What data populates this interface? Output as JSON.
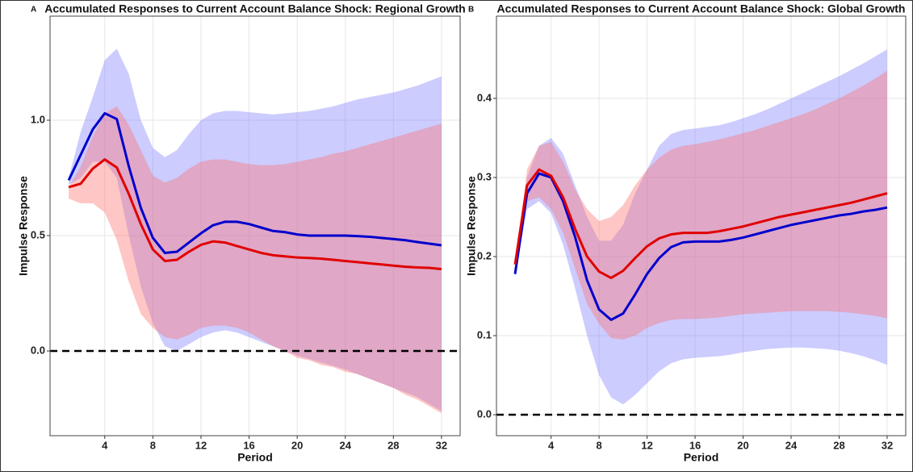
{
  "chart_data": [
    {
      "type": "band-line",
      "panel_label": "A",
      "title": "Accumulated Responses to Current Account Balance Shock: Regional Growth",
      "x_label": "Period",
      "y_label": "Impulse Response",
      "x": [
        1,
        2,
        3,
        4,
        5,
        6,
        7,
        8,
        9,
        10,
        11,
        12,
        13,
        14,
        15,
        16,
        17,
        18,
        19,
        20,
        21,
        22,
        23,
        24,
        25,
        26,
        27,
        28,
        29,
        30,
        31,
        32
      ],
      "xlim": [
        -0.55,
        33.55
      ],
      "xticks": [
        4,
        8,
        12,
        16,
        20,
        24,
        28,
        32
      ],
      "ylim": [
        -0.367,
        1.451
      ],
      "yticks": [
        {
          "value": 0,
          "label": "0.0"
        },
        {
          "value": 0.5,
          "label": "0.5"
        },
        {
          "value": 1,
          "label": "1.0"
        }
      ],
      "hline": 0,
      "grid": true,
      "series": [
        {
          "color": "#0000cc",
          "band_color": "#8080ff",
          "values": [
            0.74,
            0.85,
            0.96,
            1.03,
            1.005,
            0.8,
            0.62,
            0.49,
            0.425,
            0.43,
            0.47,
            0.51,
            0.545,
            0.56,
            0.56,
            0.55,
            0.535,
            0.52,
            0.515,
            0.505,
            0.5,
            0.5,
            0.5,
            0.5,
            0.498,
            0.495,
            0.49,
            0.485,
            0.48,
            0.472,
            0.465,
            0.458
          ],
          "upper": [
            0.75,
            0.95,
            1.1,
            1.26,
            1.31,
            1.2,
            1.0,
            0.88,
            0.84,
            0.87,
            0.94,
            1.0,
            1.03,
            1.04,
            1.04,
            1.035,
            1.03,
            1.025,
            1.03,
            1.035,
            1.04,
            1.05,
            1.06,
            1.075,
            1.09,
            1.1,
            1.11,
            1.12,
            1.135,
            1.15,
            1.17,
            1.19
          ],
          "lower": [
            0.72,
            0.75,
            0.82,
            0.82,
            0.75,
            0.5,
            0.28,
            0.12,
            0.02,
            0.0,
            0.03,
            0.06,
            0.08,
            0.09,
            0.08,
            0.06,
            0.04,
            0.02,
            0.0,
            -0.02,
            -0.035,
            -0.05,
            -0.065,
            -0.08,
            -0.1,
            -0.12,
            -0.14,
            -0.16,
            -0.18,
            -0.2,
            -0.23,
            -0.26
          ]
        },
        {
          "color": "#e00000",
          "band_color": "#ff7070",
          "values": [
            0.71,
            0.725,
            0.79,
            0.83,
            0.795,
            0.68,
            0.55,
            0.44,
            0.39,
            0.395,
            0.43,
            0.46,
            0.475,
            0.47,
            0.455,
            0.44,
            0.425,
            0.415,
            0.41,
            0.405,
            0.403,
            0.4,
            0.395,
            0.39,
            0.385,
            0.38,
            0.375,
            0.37,
            0.365,
            0.362,
            0.36,
            0.355
          ],
          "upper": [
            0.71,
            0.8,
            0.93,
            1.03,
            1.06,
            0.98,
            0.87,
            0.76,
            0.73,
            0.75,
            0.79,
            0.82,
            0.83,
            0.83,
            0.82,
            0.81,
            0.805,
            0.805,
            0.81,
            0.82,
            0.83,
            0.84,
            0.855,
            0.865,
            0.88,
            0.895,
            0.91,
            0.925,
            0.94,
            0.955,
            0.97,
            0.985
          ],
          "lower": [
            0.66,
            0.64,
            0.64,
            0.6,
            0.48,
            0.3,
            0.16,
            0.1,
            0.06,
            0.05,
            0.07,
            0.1,
            0.11,
            0.11,
            0.1,
            0.08,
            0.05,
            0.02,
            0.0,
            -0.03,
            -0.04,
            -0.06,
            -0.07,
            -0.09,
            -0.1,
            -0.12,
            -0.14,
            -0.16,
            -0.19,
            -0.21,
            -0.24,
            -0.27
          ]
        }
      ]
    },
    {
      "type": "band-line",
      "panel_label": "B",
      "title": "Accumulated Responses to Current Account Balance Shock: Global Growth",
      "x_label": "Period",
      "y_label": "Impulse Response",
      "x": [
        1,
        2,
        3,
        4,
        5,
        6,
        7,
        8,
        9,
        10,
        11,
        12,
        13,
        14,
        15,
        16,
        17,
        18,
        19,
        20,
        21,
        22,
        23,
        24,
        25,
        26,
        27,
        28,
        29,
        30,
        31,
        32
      ],
      "xlim": [
        -0.55,
        33.55
      ],
      "xticks": [
        4,
        8,
        12,
        16,
        20,
        24,
        28,
        32
      ],
      "ylim": [
        -0.0265,
        0.504
      ],
      "yticks": [
        {
          "value": 0,
          "label": "0.0"
        },
        0.1,
        0.2,
        0.3,
        0.4
      ],
      "hline": 0,
      "grid": true,
      "series": [
        {
          "color": "#0000cc",
          "band_color": "#8080ff",
          "values": [
            0.178,
            0.28,
            0.305,
            0.3,
            0.27,
            0.225,
            0.17,
            0.133,
            0.12,
            0.128,
            0.152,
            0.178,
            0.198,
            0.212,
            0.218,
            0.219,
            0.219,
            0.219,
            0.221,
            0.224,
            0.228,
            0.232,
            0.236,
            0.24,
            0.243,
            0.246,
            0.249,
            0.252,
            0.254,
            0.257,
            0.259,
            0.262
          ],
          "upper": [
            0.18,
            0.3,
            0.34,
            0.35,
            0.33,
            0.29,
            0.25,
            0.22,
            0.22,
            0.24,
            0.28,
            0.31,
            0.34,
            0.355,
            0.36,
            0.362,
            0.364,
            0.366,
            0.37,
            0.375,
            0.38,
            0.386,
            0.393,
            0.4,
            0.407,
            0.414,
            0.421,
            0.428,
            0.436,
            0.444,
            0.453,
            0.462
          ],
          "lower": [
            0.175,
            0.26,
            0.27,
            0.255,
            0.215,
            0.16,
            0.1,
            0.05,
            0.022,
            0.013,
            0.025,
            0.04,
            0.055,
            0.065,
            0.07,
            0.072,
            0.073,
            0.074,
            0.076,
            0.079,
            0.081,
            0.083,
            0.084,
            0.085,
            0.085,
            0.084,
            0.083,
            0.081,
            0.078,
            0.074,
            0.069,
            0.063
          ]
        },
        {
          "color": "#e00000",
          "band_color": "#ff7070",
          "values": [
            0.19,
            0.29,
            0.31,
            0.302,
            0.275,
            0.235,
            0.2,
            0.181,
            0.173,
            0.182,
            0.198,
            0.213,
            0.223,
            0.228,
            0.23,
            0.23,
            0.23,
            0.232,
            0.235,
            0.238,
            0.242,
            0.246,
            0.25,
            0.253,
            0.256,
            0.259,
            0.262,
            0.265,
            0.268,
            0.272,
            0.276,
            0.28
          ],
          "upper": [
            0.19,
            0.31,
            0.34,
            0.345,
            0.32,
            0.285,
            0.26,
            0.245,
            0.25,
            0.265,
            0.29,
            0.31,
            0.325,
            0.335,
            0.34,
            0.342,
            0.345,
            0.348,
            0.352,
            0.356,
            0.36,
            0.365,
            0.37,
            0.375,
            0.38,
            0.386,
            0.393,
            0.4,
            0.408,
            0.416,
            0.425,
            0.435
          ],
          "lower": [
            0.185,
            0.27,
            0.275,
            0.26,
            0.23,
            0.185,
            0.14,
            0.115,
            0.097,
            0.095,
            0.1,
            0.11,
            0.116,
            0.12,
            0.121,
            0.121,
            0.122,
            0.123,
            0.125,
            0.127,
            0.128,
            0.129,
            0.13,
            0.131,
            0.131,
            0.131,
            0.131,
            0.13,
            0.129,
            0.127,
            0.125,
            0.122
          ]
        }
      ]
    }
  ]
}
